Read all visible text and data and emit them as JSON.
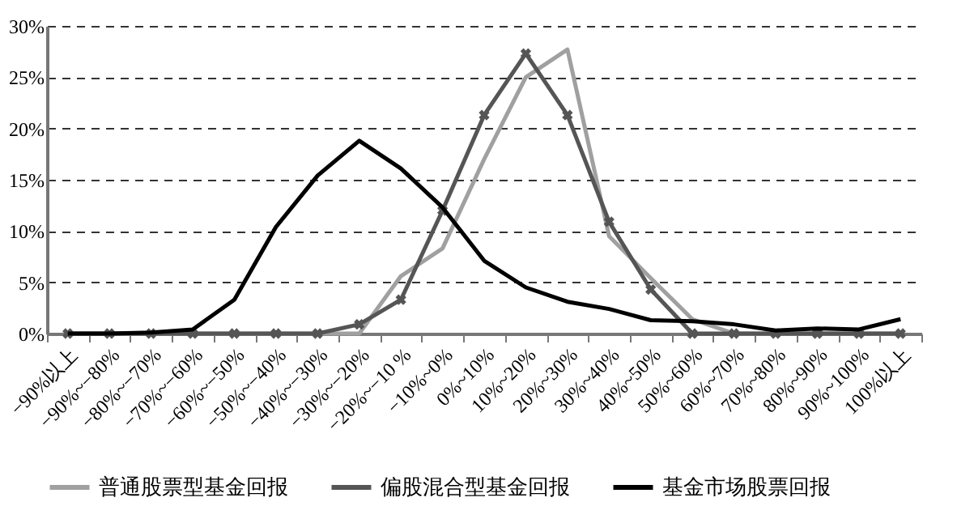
{
  "chart_data": {
    "type": "line",
    "categories": [
      "−90%以上",
      "−90%~−80%",
      "−80%~−70%",
      "−70%~−60%",
      "−60%~−50%",
      "−50%~−40%",
      "−40%~−30%",
      "−30%~−20%",
      "−20%~−10 %",
      "−10%~0%",
      "0%~10%",
      "10%~20%",
      "20%~30%",
      "30%~40%",
      "40%~50%",
      "50%~60%",
      "60%~70%",
      "70%~80%",
      "80%~90%",
      "90%~100%",
      "100%以上"
    ],
    "series": [
      {
        "name": "普通股票型基金回报",
        "color": "#a0a0a0",
        "values": [
          0,
          0,
          0,
          0,
          0,
          0,
          0,
          0,
          5.6,
          8.3,
          17,
          25,
          27.7,
          9.5,
          5.4,
          1.4,
          0,
          0,
          0,
          0,
          0
        ]
      },
      {
        "name": "偏股混合型基金回报",
        "color": "#555555",
        "marker": "cross",
        "values": [
          0,
          0,
          0,
          0,
          0,
          0,
          0,
          0.9,
          3.3,
          12,
          21.3,
          27.3,
          21.3,
          10.9,
          4.3,
          0,
          0,
          0,
          0,
          0,
          0
        ]
      },
      {
        "name": "基金市场股票回报",
        "color": "#000000",
        "values": [
          0,
          0,
          0.1,
          0.4,
          3.3,
          10.4,
          15.4,
          18.8,
          16.1,
          12.3,
          7.1,
          4.5,
          3.1,
          2.4,
          1.3,
          1.2,
          0.9,
          0.3,
          0.5,
          0.4,
          1.4
        ]
      }
    ],
    "ylim": [
      0,
      30
    ],
    "yticks": [
      {
        "value": 0,
        "label": "0%"
      },
      {
        "value": 5,
        "label": "5%"
      },
      {
        "value": 10,
        "label": "10%"
      },
      {
        "value": 15,
        "label": "15%"
      },
      {
        "value": 20,
        "label": "20%"
      },
      {
        "value": 25,
        "label": "25%"
      },
      {
        "value": 30,
        "label": "30%"
      }
    ],
    "grid": "y",
    "legend": "bottom",
    "line_style": "solid"
  }
}
